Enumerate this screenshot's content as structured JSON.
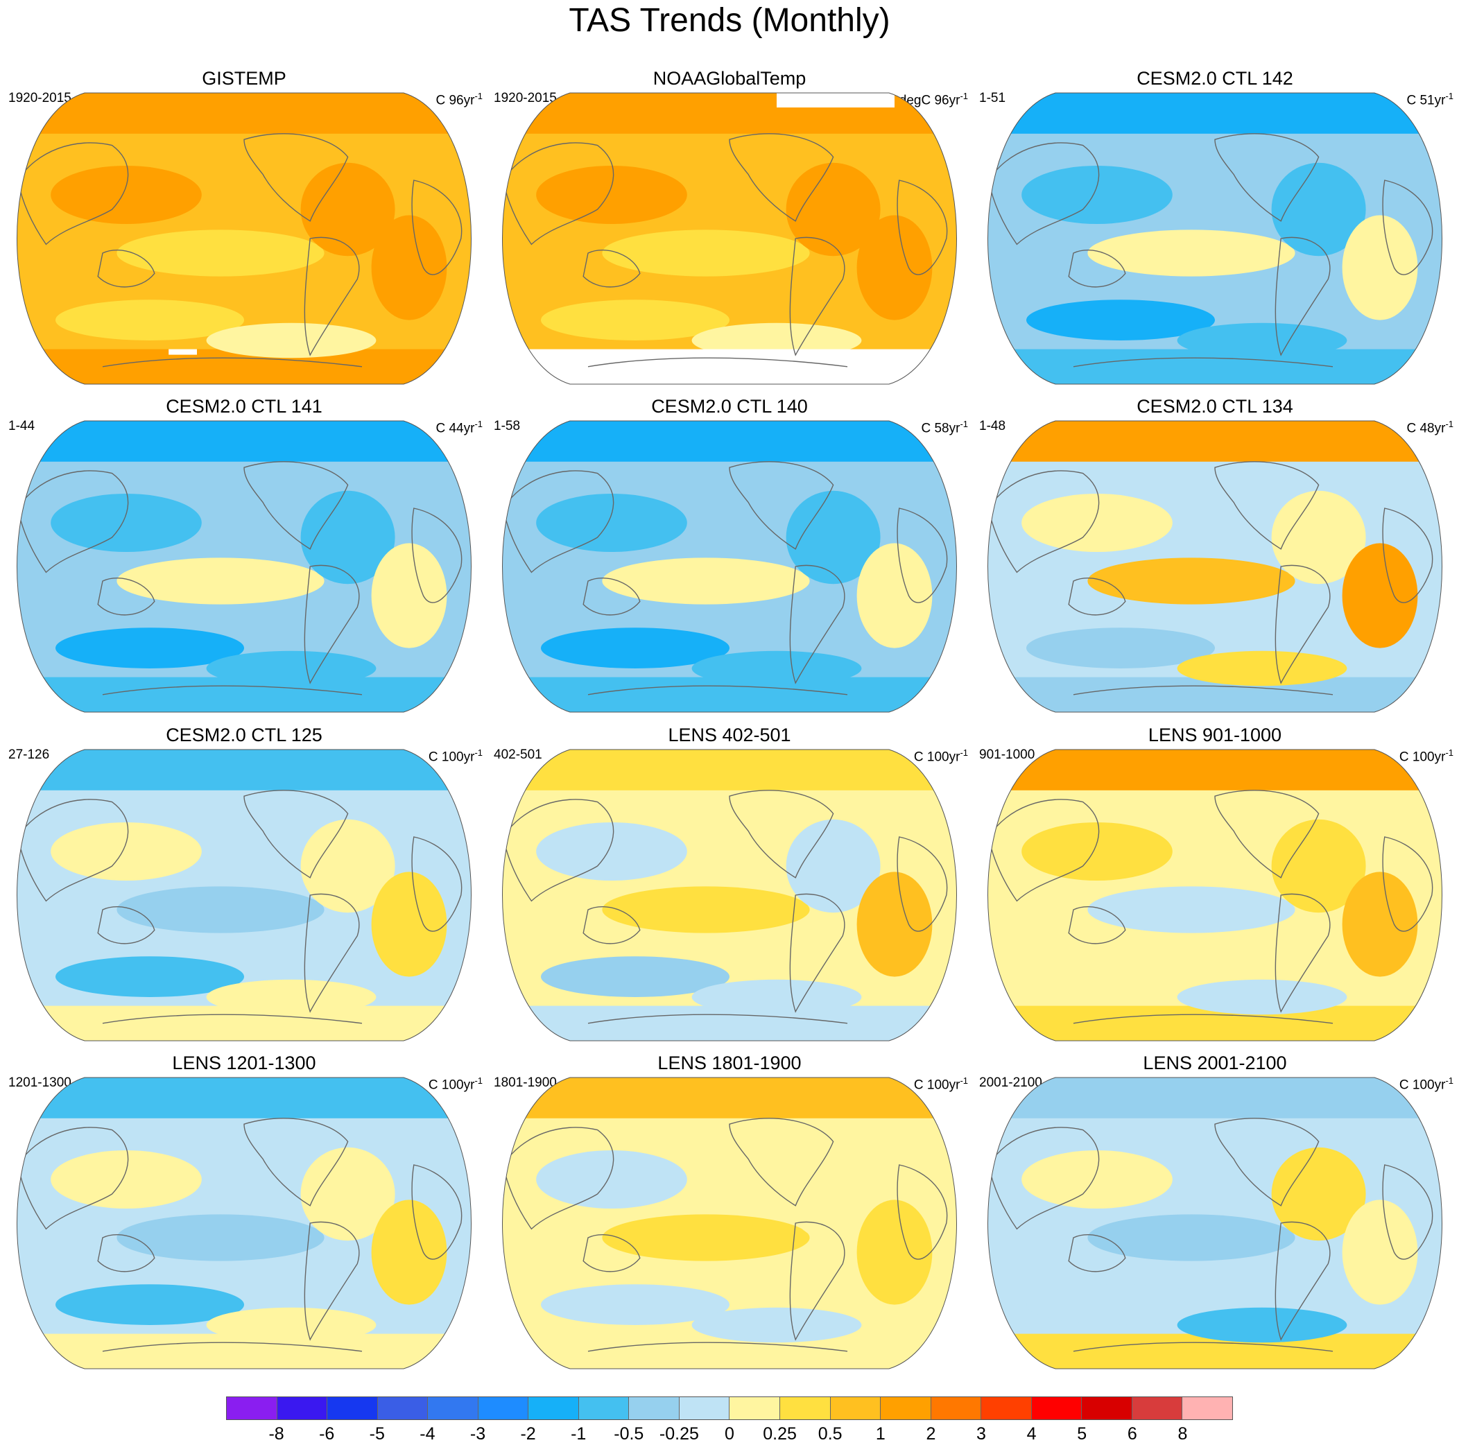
{
  "title": "TAS Trends (Monthly)",
  "panels": [
    {
      "title": "GISTEMP",
      "left": "1920-2015",
      "right_prefix": "C 96yr",
      "right_exp": "-1",
      "scheme": "warm",
      "mask": "gistemp"
    },
    {
      "title": "NOAAGlobalTemp",
      "left": "1920-2015",
      "right_prefix": "degC 96yr",
      "right_exp": "-1",
      "scheme": "warm",
      "mask": "noaa"
    },
    {
      "title": "CESM2.0 CTL 142",
      "left": "1-51",
      "right_prefix": "C 51yr",
      "right_exp": "-1",
      "scheme": "cool"
    },
    {
      "title": "CESM2.0 CTL 141",
      "left": "1-44",
      "right_prefix": "C 44yr",
      "right_exp": "-1",
      "scheme": "cool"
    },
    {
      "title": "CESM2.0 CTL 140",
      "left": "1-58",
      "right_prefix": "C 58yr",
      "right_exp": "-1",
      "scheme": "cool"
    },
    {
      "title": "CESM2.0 CTL 134",
      "left": "1-48",
      "right_prefix": "C 48yr",
      "right_exp": "-1",
      "scheme": "warmnorth"
    },
    {
      "title": "CESM2.0 CTL 125",
      "left": "27-126",
      "right_prefix": "C 100yr",
      "right_exp": "-1",
      "scheme": "mixedcool"
    },
    {
      "title": "LENS 402-501",
      "left": "402-501",
      "right_prefix": "C 100yr",
      "right_exp": "-1",
      "scheme": "mixed"
    },
    {
      "title": "LENS 901-1000",
      "left": "901-1000",
      "right_prefix": "C 100yr",
      "right_exp": "-1",
      "scheme": "warmnorth2"
    },
    {
      "title": "LENS 1201-1300",
      "left": "1201-1300",
      "right_prefix": "C 100yr",
      "right_exp": "-1",
      "scheme": "mixedcool"
    },
    {
      "title": "LENS 1801-1900",
      "left": "1801-1900",
      "right_prefix": "C 100yr",
      "right_exp": "-1",
      "scheme": "mixedwarm"
    },
    {
      "title": "LENS 2001-2100",
      "left": "2001-2100",
      "right_prefix": "C 100yr",
      "right_exp": "-1",
      "scheme": "mixedcool2"
    }
  ],
  "colorbar": {
    "labels": [
      "-8",
      "-6",
      "-5",
      "-4",
      "-3",
      "-2",
      "-1",
      "-0.5",
      "-0.25",
      "0",
      "0.25",
      "0.5",
      "1",
      "2",
      "3",
      "4",
      "5",
      "6",
      "8"
    ],
    "colors": [
      "#8a1ef0",
      "#3a18f0",
      "#1638f0",
      "#3a5ee6",
      "#3278f0",
      "#1e8cff",
      "#16b0f8",
      "#44c0f0",
      "#96d0ee",
      "#bfe3f5",
      "#fff5a0",
      "#ffe040",
      "#ffc020",
      "#ffa000",
      "#ff7800",
      "#ff4000",
      "#ff0000",
      "#d80000",
      "#d83c3c",
      "#ffb2b2"
    ]
  }
}
